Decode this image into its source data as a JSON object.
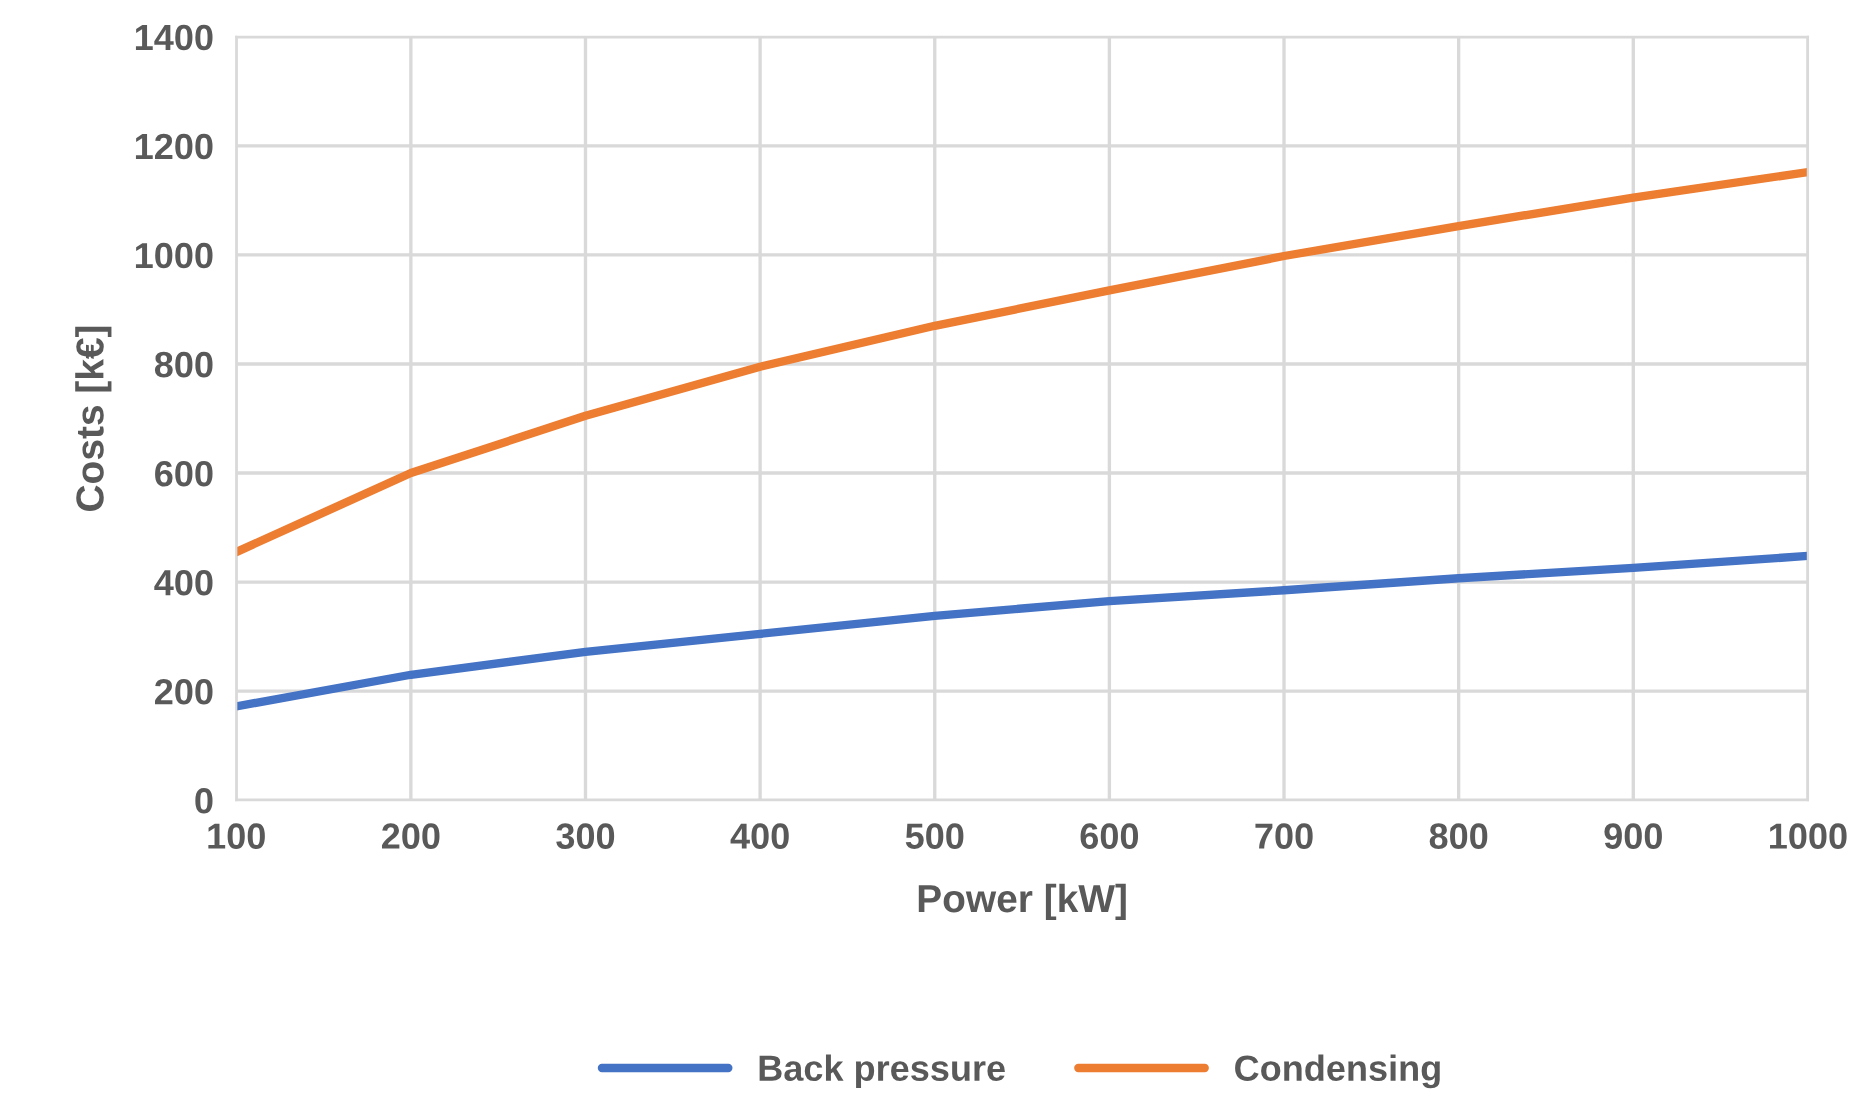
{
  "chart_data": {
    "type": "line",
    "xlabel": "Power [kW]",
    "ylabel": "Costs [k€]",
    "x": [
      100,
      200,
      300,
      400,
      500,
      600,
      700,
      800,
      900,
      1000
    ],
    "series": [
      {
        "name": "Back pressure",
        "color": "#4472c4",
        "values": [
          172,
          230,
          272,
          305,
          338,
          365,
          385,
          407,
          426,
          448
        ]
      },
      {
        "name": "Condensing",
        "color": "#ed7d31",
        "values": [
          455,
          600,
          705,
          795,
          870,
          935,
          998,
          1053,
          1105,
          1152
        ]
      }
    ],
    "xlim": [
      100,
      1000
    ],
    "xticks": [
      100,
      200,
      300,
      400,
      500,
      600,
      700,
      800,
      900,
      1000
    ],
    "ylim": [
      0,
      1400
    ],
    "yticks": [
      0,
      200,
      400,
      600,
      800,
      1000,
      1200,
      1400
    ],
    "grid": true,
    "legend": "bottom",
    "marker": "none",
    "line_style": "solid"
  }
}
